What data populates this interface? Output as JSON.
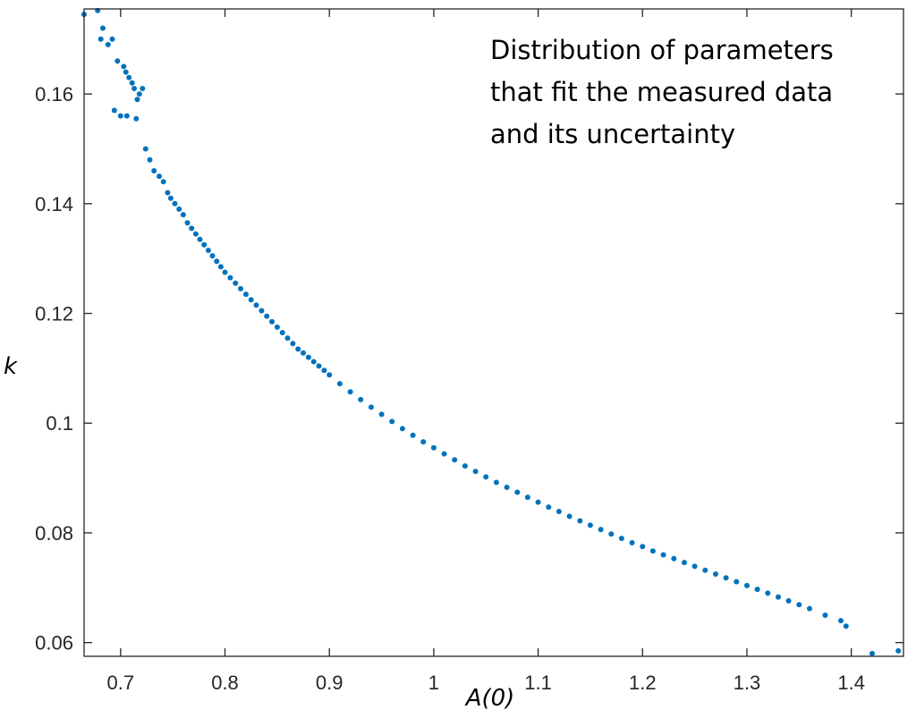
{
  "chart_data": {
    "type": "scatter",
    "xlabel": "A(0)",
    "ylabel": "k",
    "xlim": [
      0.665,
      1.45
    ],
    "ylim": [
      0.0575,
      0.1755
    ],
    "xticks": [
      0.7,
      0.8,
      0.9,
      1.0,
      1.1,
      1.2,
      1.3,
      1.4
    ],
    "xtick_labels": [
      "0.7",
      "0.8",
      "0.9",
      "1",
      "1.1",
      "1.2",
      "1.3",
      "1.4"
    ],
    "yticks": [
      0.06,
      0.08,
      0.1,
      0.12,
      0.14,
      0.16
    ],
    "ytick_labels": [
      "0.06",
      "0.08",
      "0.1",
      "0.12",
      "0.14",
      "0.16"
    ],
    "annotation": [
      "Distribution of parameters",
      "that fit the measured data",
      "and its uncertainty"
    ],
    "grid": false,
    "box": true,
    "marker_color": "#0072BD",
    "series": [
      {
        "x": [
          0.665,
          0.678,
          0.681,
          0.683,
          0.688,
          0.692,
          0.697,
          0.7,
          0.703,
          0.705,
          0.708,
          0.711,
          0.713,
          0.716,
          0.718,
          0.721,
          0.694,
          0.706,
          0.715,
          0.724,
          0.728,
          0.732,
          0.737,
          0.741,
          0.745,
          0.748,
          0.752,
          0.756,
          0.76,
          0.764,
          0.768,
          0.772,
          0.776,
          0.78,
          0.784,
          0.788,
          0.792,
          0.796,
          0.8,
          0.805,
          0.81,
          0.815,
          0.82,
          0.825,
          0.83,
          0.835,
          0.84,
          0.845,
          0.85,
          0.855,
          0.86,
          0.865,
          0.87,
          0.875,
          0.88,
          0.885,
          0.89,
          0.895,
          0.9,
          0.91,
          0.92,
          0.93,
          0.94,
          0.95,
          0.96,
          0.97,
          0.98,
          0.99,
          1.0,
          1.01,
          1.02,
          1.03,
          1.04,
          1.05,
          1.06,
          1.07,
          1.08,
          1.09,
          1.1,
          1.11,
          1.12,
          1.13,
          1.14,
          1.15,
          1.16,
          1.17,
          1.18,
          1.19,
          1.2,
          1.21,
          1.22,
          1.23,
          1.24,
          1.25,
          1.26,
          1.27,
          1.28,
          1.29,
          1.3,
          1.31,
          1.32,
          1.33,
          1.34,
          1.35,
          1.36,
          1.375,
          1.39,
          1.395,
          1.42,
          1.445
        ],
        "y": [
          0.1745,
          0.1752,
          0.17,
          0.172,
          0.169,
          0.17,
          0.166,
          0.156,
          0.165,
          0.164,
          0.163,
          0.162,
          0.161,
          0.159,
          0.16,
          0.161,
          0.157,
          0.156,
          0.1555,
          0.15,
          0.148,
          0.146,
          0.145,
          0.144,
          0.142,
          0.141,
          0.14,
          0.139,
          0.138,
          0.1365,
          0.1355,
          0.1345,
          0.1335,
          0.1325,
          0.1315,
          0.1305,
          0.1295,
          0.1285,
          0.1275,
          0.1265,
          0.1255,
          0.1245,
          0.1235,
          0.1225,
          0.1215,
          0.1205,
          0.1195,
          0.1185,
          0.1175,
          0.1165,
          0.1155,
          0.1145,
          0.1135,
          0.1128,
          0.112,
          0.1112,
          0.1104,
          0.1096,
          0.1088,
          0.1072,
          0.1057,
          0.1043,
          0.1029,
          0.1016,
          0.1003,
          0.099,
          0.0978,
          0.0966,
          0.0955,
          0.0944,
          0.0933,
          0.0922,
          0.0912,
          0.0902,
          0.0892,
          0.0883,
          0.0874,
          0.0865,
          0.0856,
          0.0847,
          0.0839,
          0.083,
          0.0822,
          0.0814,
          0.0806,
          0.0798,
          0.079,
          0.0782,
          0.0775,
          0.0767,
          0.076,
          0.0753,
          0.0746,
          0.0739,
          0.0732,
          0.0725,
          0.0718,
          0.0711,
          0.0704,
          0.0697,
          0.069,
          0.0683,
          0.0676,
          0.0669,
          0.0662,
          0.065,
          0.064,
          0.063,
          0.058,
          0.0585
        ]
      }
    ]
  }
}
